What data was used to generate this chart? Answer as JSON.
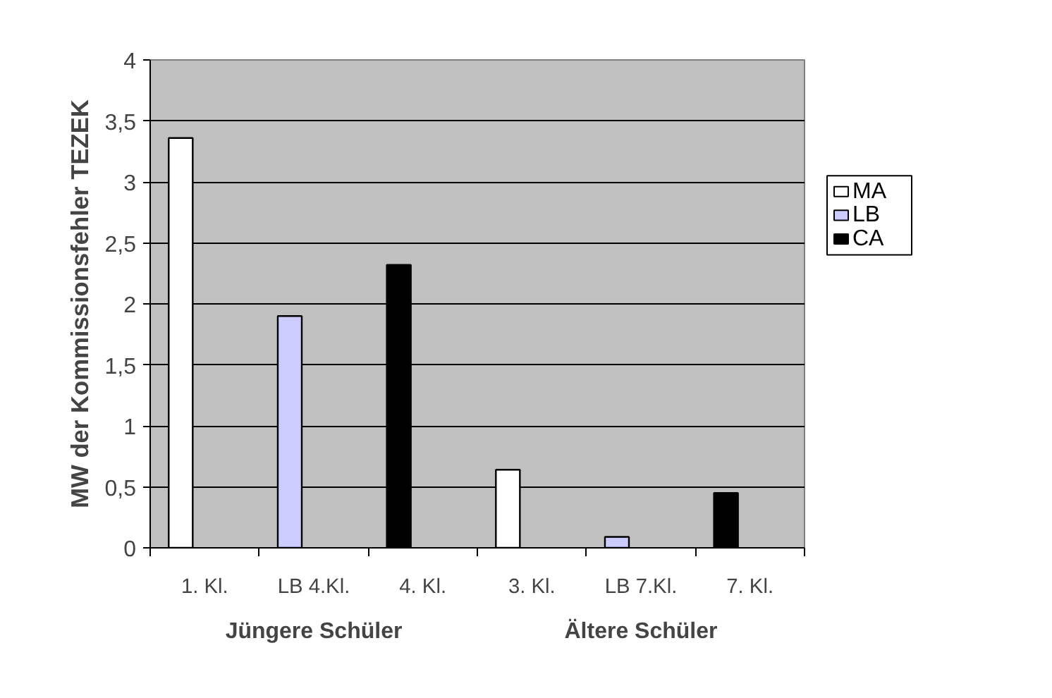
{
  "chart_data": {
    "type": "bar",
    "ylabel": "MW der Kommissionsfehler TEZEK",
    "categories": [
      "1. Kl.",
      "LB 4.Kl.",
      "4. Kl.",
      "3. Kl.",
      "LB 7.Kl.",
      "7. Kl."
    ],
    "series": [
      {
        "name": "MA",
        "color": "#ffffff",
        "values": [
          3.36,
          null,
          null,
          0.64,
          null,
          null
        ]
      },
      {
        "name": "LB",
        "color": "#ccccff",
        "values": [
          null,
          1.9,
          null,
          null,
          0.09,
          null
        ]
      },
      {
        "name": "CA",
        "color": "#000000",
        "values": [
          null,
          null,
          2.32,
          null,
          null,
          0.45
        ]
      }
    ],
    "ylim": [
      0,
      4
    ],
    "yticks": [
      0,
      {
        "value": 0.5,
        "label": "0,5"
      },
      1,
      {
        "value": 1.5,
        "label": "1,5"
      },
      2,
      {
        "value": 2.5,
        "label": "2,5"
      },
      3,
      {
        "value": 3.5,
        "label": "3,5"
      },
      4
    ],
    "grid": "y",
    "legend": "right",
    "annotations": [
      "Jüngere Schüler",
      "Ältere Schüler"
    ]
  }
}
